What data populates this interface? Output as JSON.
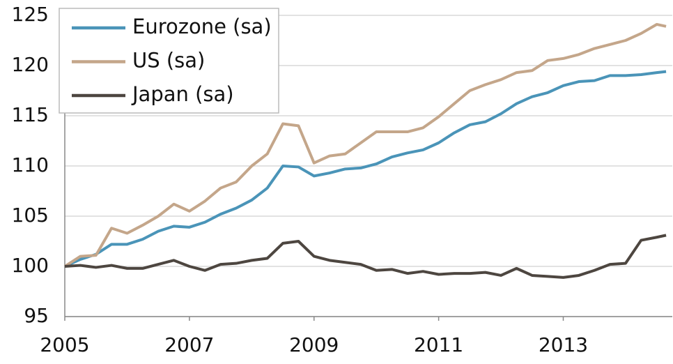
{
  "chart_data": {
    "type": "line",
    "x": [
      2005,
      2005.25,
      2005.5,
      2005.75,
      2006,
      2006.25,
      2006.5,
      2006.75,
      2007,
      2007.25,
      2007.5,
      2007.75,
      2008,
      2008.25,
      2008.5,
      2008.75,
      2009,
      2009.25,
      2009.5,
      2009.75,
      2010,
      2010.25,
      2010.5,
      2010.75,
      2011,
      2011.25,
      2011.5,
      2011.75,
      2012,
      2012.25,
      2012.5,
      2012.75,
      2013,
      2013.25,
      2013.5,
      2013.75,
      2014,
      2014.25,
      2014.5,
      2014.65
    ],
    "series": [
      {
        "name": "Eurozone (sa)",
        "color": "#4a94b8",
        "values": [
          100,
          100.7,
          101.2,
          102.2,
          102.2,
          102.7,
          103.5,
          104,
          103.9,
          104.4,
          105.2,
          105.8,
          106.6,
          107.8,
          110,
          109.9,
          109,
          109.3,
          109.7,
          109.8,
          110.2,
          110.9,
          111.3,
          111.6,
          112.3,
          113.3,
          114.1,
          114.4,
          115.2,
          116.2,
          116.9,
          117.3,
          118,
          118.4,
          118.5,
          119,
          119,
          119.1,
          119.3,
          119.4
        ]
      },
      {
        "name": "US (sa)",
        "color": "#c4a68a",
        "values": [
          100,
          101,
          101.1,
          103.8,
          103.3,
          104.1,
          105,
          106.2,
          105.5,
          106.5,
          107.8,
          108.4,
          110,
          111.2,
          114.2,
          114,
          110.3,
          111,
          111.2,
          112.3,
          113.4,
          113.4,
          113.4,
          113.8,
          114.9,
          116.2,
          117.5,
          118.1,
          118.6,
          119.3,
          119.5,
          120.5,
          120.7,
          121.1,
          121.7,
          122.1,
          122.5,
          123.2,
          124.1,
          123.9
        ]
      },
      {
        "name": "Japan (sa)",
        "color": "#4d4640",
        "values": [
          100,
          100.1,
          99.9,
          100.1,
          99.8,
          99.8,
          100.2,
          100.6,
          100,
          99.6,
          100.2,
          100.3,
          100.6,
          100.8,
          102.3,
          102.5,
          101,
          100.6,
          100.4,
          100.2,
          99.6,
          99.7,
          99.3,
          99.5,
          99.2,
          99.3,
          99.3,
          99.4,
          99.1,
          99.8,
          99.1,
          99,
          98.9,
          99.1,
          99.6,
          100.2,
          100.3,
          102.6,
          102.9,
          103.1
        ]
      }
    ],
    "xlim": [
      2005,
      2014.75
    ],
    "xticks": [
      2005,
      2007,
      2009,
      2011,
      2013
    ],
    "ylim": [
      95,
      125
    ],
    "yticks": [
      95,
      100,
      105,
      110,
      115,
      120,
      125
    ],
    "grid": true,
    "legend": "upper left"
  }
}
